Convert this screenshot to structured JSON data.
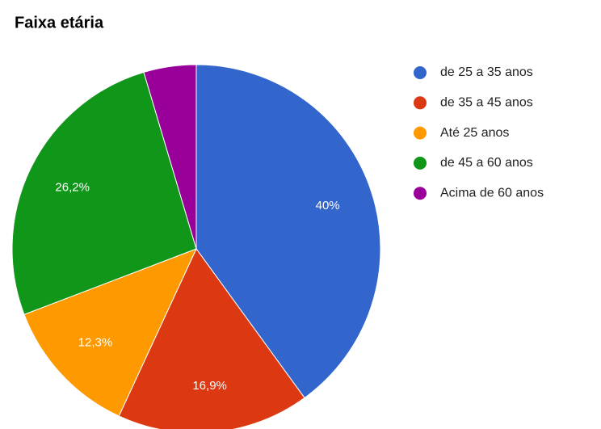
{
  "chart_data": {
    "type": "pie",
    "title": "Faixa etária",
    "categories": [
      "de 25 a 35 anos",
      "de 35 a 45 anos",
      "Até 25 anos",
      "de 45 a 60 anos",
      "Acima de 60 anos"
    ],
    "values": [
      40,
      16.9,
      12.3,
      26.2,
      4.6
    ],
    "value_labels": [
      "40%",
      "16,9%",
      "12,3%",
      "26,2%",
      null
    ],
    "colors": [
      "#3366cc",
      "#dc3912",
      "#ff9900",
      "#109618",
      "#990099"
    ],
    "legend": "right"
  }
}
